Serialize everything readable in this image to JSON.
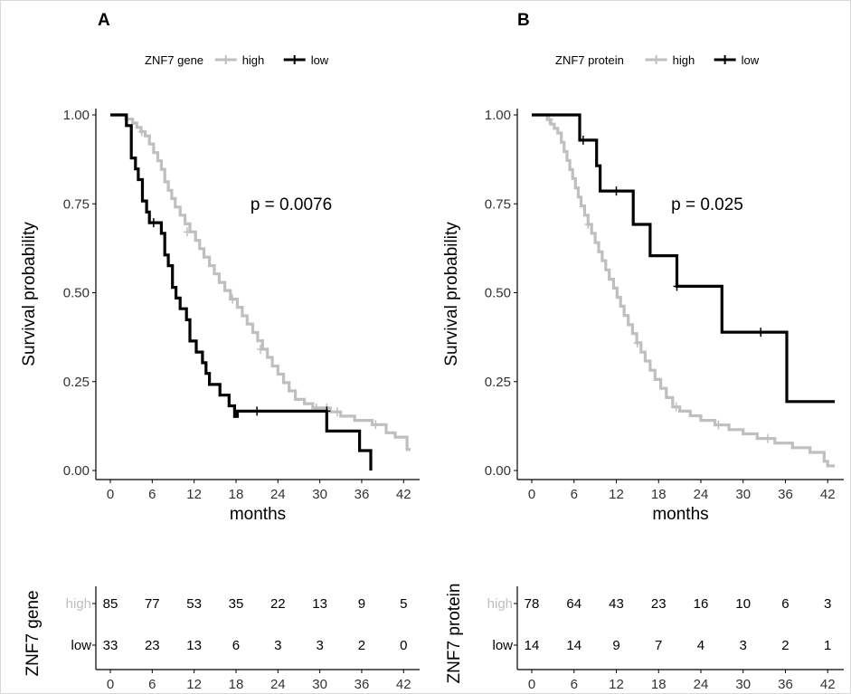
{
  "chart_data": [
    {
      "type": "line",
      "panel_label": "A",
      "legend": {
        "title": "ZNF7 gene",
        "placement": "top",
        "entries": [
          "high",
          "low"
        ]
      },
      "ylabel": "Survival probability",
      "xlabel": "months",
      "annotation": "p = 0.0076",
      "xlim": [
        0,
        43
      ],
      "ylim": [
        0,
        1
      ],
      "x_ticks": [
        "0",
        "6",
        "12",
        "18",
        "24",
        "30",
        "36",
        "42"
      ],
      "y_ticks": [
        "0.00",
        "0.25",
        "0.50",
        "0.75",
        "1.00"
      ],
      "colors": {
        "high": "#bfbfbf",
        "low": "#000000"
      },
      "series": [
        {
          "name": "high",
          "points": [
            [
              0,
              1.0
            ],
            [
              1.8,
              1.0
            ],
            [
              2.2,
              0.988
            ],
            [
              3.2,
              0.977
            ],
            [
              3.8,
              0.965
            ],
            [
              4.4,
              0.953
            ],
            [
              5.0,
              0.941
            ],
            [
              5.6,
              0.918
            ],
            [
              6.2,
              0.894
            ],
            [
              6.8,
              0.871
            ],
            [
              7.3,
              0.847
            ],
            [
              7.8,
              0.812
            ],
            [
              8.3,
              0.788
            ],
            [
              8.8,
              0.765
            ],
            [
              9.3,
              0.741
            ],
            [
              10.0,
              0.718
            ],
            [
              10.7,
              0.694
            ],
            [
              11.4,
              0.671
            ],
            [
              12.2,
              0.647
            ],
            [
              12.8,
              0.624
            ],
            [
              13.4,
              0.6
            ],
            [
              14.2,
              0.576
            ],
            [
              14.9,
              0.553
            ],
            [
              15.6,
              0.529
            ],
            [
              16.4,
              0.506
            ],
            [
              17.2,
              0.482
            ],
            [
              18.2,
              0.459
            ],
            [
              18.9,
              0.435
            ],
            [
              19.6,
              0.412
            ],
            [
              20.4,
              0.388
            ],
            [
              21.1,
              0.365
            ],
            [
              21.8,
              0.341
            ],
            [
              22.5,
              0.318
            ],
            [
              23.2,
              0.294
            ],
            [
              24.0,
              0.271
            ],
            [
              24.8,
              0.247
            ],
            [
              25.6,
              0.224
            ],
            [
              26.5,
              0.2
            ],
            [
              27.8,
              0.188
            ],
            [
              29.0,
              0.176
            ],
            [
              31.5,
              0.165
            ],
            [
              33.0,
              0.153
            ],
            [
              35.0,
              0.141
            ],
            [
              37.5,
              0.129
            ],
            [
              39.5,
              0.106
            ],
            [
              40.8,
              0.094
            ],
            [
              42.5,
              0.059
            ],
            [
              43.0,
              0.059
            ]
          ],
          "censor": [
            [
              4.5,
              0.953
            ],
            [
              11.0,
              0.671
            ],
            [
              17.5,
              0.482
            ],
            [
              21.5,
              0.341
            ],
            [
              29.5,
              0.176
            ],
            [
              31.0,
              0.176
            ],
            [
              32.5,
              0.165
            ],
            [
              38.0,
              0.129
            ]
          ]
        },
        {
          "name": "low",
          "points": [
            [
              0,
              1.0
            ],
            [
              1.8,
              1.0
            ],
            [
              2.3,
              0.97
            ],
            [
              3.0,
              0.879
            ],
            [
              3.6,
              0.848
            ],
            [
              4.0,
              0.818
            ],
            [
              4.6,
              0.758
            ],
            [
              5.2,
              0.727
            ],
            [
              5.6,
              0.697
            ],
            [
              7.0,
              0.697
            ],
            [
              7.3,
              0.667
            ],
            [
              7.8,
              0.606
            ],
            [
              8.3,
              0.576
            ],
            [
              8.9,
              0.515
            ],
            [
              9.4,
              0.485
            ],
            [
              10.0,
              0.455
            ],
            [
              10.9,
              0.424
            ],
            [
              11.4,
              0.364
            ],
            [
              12.3,
              0.333
            ],
            [
              13.2,
              0.303
            ],
            [
              13.7,
              0.273
            ],
            [
              14.2,
              0.242
            ],
            [
              15.7,
              0.212
            ],
            [
              17.0,
              0.182
            ],
            [
              17.8,
              0.152
            ],
            [
              18.2,
              0.167
            ],
            [
              21.0,
              0.167
            ],
            [
              30.5,
              0.167
            ],
            [
              31.0,
              0.111
            ],
            [
              35.7,
              0.056
            ],
            [
              36.8,
              0.056
            ],
            [
              37.3,
              0.0
            ]
          ],
          "censor": [
            [
              6.2,
              0.697
            ],
            [
              21.0,
              0.167
            ],
            [
              31.0,
              0.167
            ]
          ]
        }
      ],
      "risk_table": {
        "ylabel": "ZNF7 gene",
        "rows": [
          {
            "name": "high",
            "values": [
              "85",
              "77",
              "53",
              "35",
              "22",
              "13",
              "9",
              "5"
            ]
          },
          {
            "name": "low",
            "values": [
              "33",
              "23",
              "13",
              "6",
              "3",
              "3",
              "2",
              "0"
            ]
          }
        ],
        "x_ticks": [
          "0",
          "6",
          "12",
          "18",
          "24",
          "30",
          "36",
          "42"
        ]
      }
    },
    {
      "type": "line",
      "panel_label": "B",
      "legend": {
        "title": "ZNF7 protein",
        "placement": "top",
        "entries": [
          "high",
          "low"
        ]
      },
      "ylabel": "Survival probability",
      "xlabel": "months",
      "annotation": "p = 0.025",
      "xlim": [
        0,
        43
      ],
      "ylim": [
        0,
        1
      ],
      "x_ticks": [
        "0",
        "6",
        "12",
        "18",
        "24",
        "30",
        "36",
        "42"
      ],
      "y_ticks": [
        "0.00",
        "0.25",
        "0.50",
        "0.75",
        "1.00"
      ],
      "colors": {
        "high": "#bfbfbf",
        "low": "#000000"
      },
      "series": [
        {
          "name": "high",
          "points": [
            [
              0,
              1.0
            ],
            [
              1.5,
              1.0
            ],
            [
              2.2,
              0.987
            ],
            [
              2.7,
              0.974
            ],
            [
              3.2,
              0.962
            ],
            [
              3.7,
              0.949
            ],
            [
              4.2,
              0.923
            ],
            [
              4.6,
              0.897
            ],
            [
              5.0,
              0.872
            ],
            [
              5.4,
              0.846
            ],
            [
              5.8,
              0.821
            ],
            [
              6.2,
              0.795
            ],
            [
              6.6,
              0.769
            ],
            [
              7.0,
              0.744
            ],
            [
              7.5,
              0.718
            ],
            [
              8.0,
              0.692
            ],
            [
              8.5,
              0.667
            ],
            [
              9.0,
              0.641
            ],
            [
              9.5,
              0.615
            ],
            [
              10.0,
              0.59
            ],
            [
              10.5,
              0.564
            ],
            [
              11.0,
              0.538
            ],
            [
              11.6,
              0.513
            ],
            [
              12.1,
              0.487
            ],
            [
              12.6,
              0.462
            ],
            [
              13.1,
              0.436
            ],
            [
              13.7,
              0.41
            ],
            [
              14.3,
              0.385
            ],
            [
              14.9,
              0.359
            ],
            [
              15.5,
              0.333
            ],
            [
              16.1,
              0.308
            ],
            [
              16.8,
              0.282
            ],
            [
              17.5,
              0.256
            ],
            [
              18.3,
              0.231
            ],
            [
              19.1,
              0.205
            ],
            [
              20.0,
              0.179
            ],
            [
              21.0,
              0.167
            ],
            [
              22.5,
              0.154
            ],
            [
              24.0,
              0.141
            ],
            [
              26.0,
              0.128
            ],
            [
              28.0,
              0.115
            ],
            [
              30.0,
              0.103
            ],
            [
              32.0,
              0.09
            ],
            [
              34.5,
              0.077
            ],
            [
              37.0,
              0.064
            ],
            [
              39.5,
              0.051
            ],
            [
              41.5,
              0.026
            ],
            [
              42.0,
              0.013
            ],
            [
              43.0,
              0.013
            ]
          ],
          "censor": [
            [
              2.5,
              0.987
            ],
            [
              8.0,
              0.692
            ],
            [
              15.0,
              0.359
            ],
            [
              20.5,
              0.179
            ],
            [
              26.5,
              0.128
            ],
            [
              33.5,
              0.09
            ]
          ]
        },
        {
          "name": "low",
          "points": [
            [
              0,
              1.0
            ],
            [
              6.3,
              1.0
            ],
            [
              6.8,
              0.929
            ],
            [
              8.7,
              0.929
            ],
            [
              9.2,
              0.857
            ],
            [
              9.7,
              0.786
            ],
            [
              13.8,
              0.786
            ],
            [
              14.4,
              0.692
            ],
            [
              16.3,
              0.692
            ],
            [
              16.8,
              0.604
            ],
            [
              20.2,
              0.604
            ],
            [
              20.6,
              0.518
            ],
            [
              26.5,
              0.518
            ],
            [
              27.0,
              0.389
            ],
            [
              35.7,
              0.389
            ],
            [
              36.2,
              0.194
            ],
            [
              43.0,
              0.194
            ]
          ],
          "censor": [
            [
              7.3,
              0.929
            ],
            [
              12.0,
              0.786
            ],
            [
              20.6,
              0.518
            ],
            [
              32.5,
              0.389
            ]
          ]
        }
      ],
      "risk_table": {
        "ylabel": "ZNF7 protein",
        "rows": [
          {
            "name": "high",
            "values": [
              "78",
              "64",
              "43",
              "23",
              "16",
              "10",
              "6",
              "3"
            ]
          },
          {
            "name": "low",
            "values": [
              "14",
              "14",
              "9",
              "7",
              "4",
              "3",
              "2",
              "1"
            ]
          }
        ],
        "x_ticks": [
          "0",
          "6",
          "12",
          "18",
          "24",
          "30",
          "36",
          "42"
        ]
      }
    }
  ]
}
